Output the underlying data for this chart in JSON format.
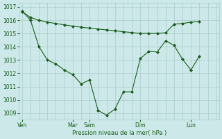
{
  "background_color": "#cce8e8",
  "grid_color": "#aacccc",
  "line_color": "#1a5c1a",
  "marker_color": "#1a5c1a",
  "xlabel": "Pression niveau de la mer( hPa )",
  "ylim": [
    1008.5,
    1017.3
  ],
  "yticks": [
    1009,
    1010,
    1011,
    1012,
    1013,
    1014,
    1015,
    1016,
    1017
  ],
  "x_day_labels": [
    "Ven",
    "Mar",
    "Sam",
    "Dim",
    "Lun"
  ],
  "x_day_positions": [
    0,
    36,
    48,
    84,
    120
  ],
  "xlim": [
    -2,
    140
  ],
  "num_minor_cols": 144,
  "line1_x": [
    0,
    6,
    12,
    18,
    24,
    30,
    36,
    42,
    48,
    54,
    60,
    66,
    72,
    78,
    84,
    90,
    96,
    102,
    108,
    114,
    120,
    126
  ],
  "line1_y": [
    1016.65,
    1016.2,
    1016.0,
    1015.85,
    1015.75,
    1015.65,
    1015.55,
    1015.47,
    1015.4,
    1015.33,
    1015.27,
    1015.2,
    1015.13,
    1015.07,
    1015.0,
    1015.0,
    1015.0,
    1015.05,
    1015.7,
    1015.75,
    1015.85,
    1015.9
  ],
  "line2_x": [
    0,
    6,
    12,
    18,
    24,
    30,
    36,
    42,
    48,
    54,
    60,
    66,
    72,
    78,
    84,
    90,
    96,
    102,
    108,
    114,
    120,
    126
  ],
  "line2_y": [
    1016.7,
    1016.0,
    1014.0,
    1013.0,
    1012.7,
    1012.25,
    1011.9,
    1011.2,
    1011.5,
    1009.2,
    1008.85,
    1009.3,
    1010.6,
    1010.6,
    1013.1,
    1013.65,
    1013.6,
    1014.45,
    1014.1,
    1013.05,
    1012.25,
    1013.3
  ]
}
